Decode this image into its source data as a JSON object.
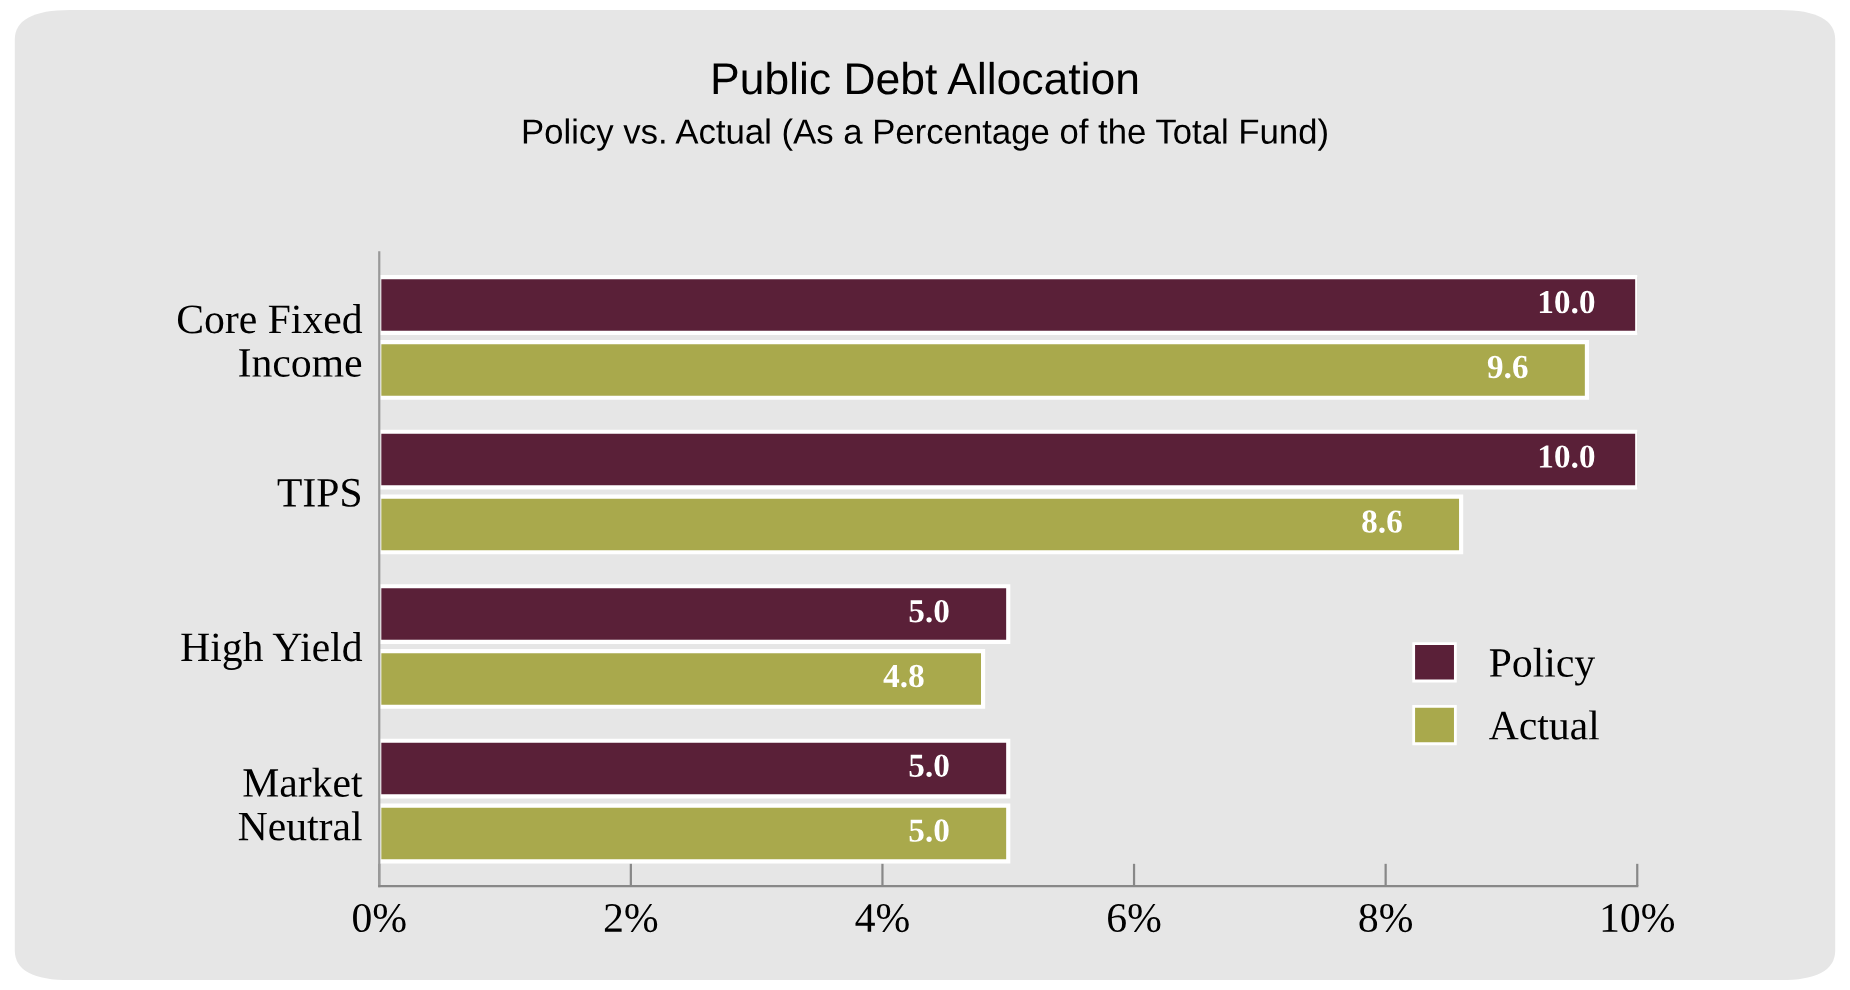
{
  "chart_data": {
    "type": "bar",
    "orientation": "horizontal",
    "title": "Public Debt Allocation",
    "subtitle": "Policy vs. Actual (As a Percentage of the Total Fund)",
    "categories": [
      "Core Fixed\nIncome",
      "TIPS",
      "High Yield",
      "Market\nNeutral"
    ],
    "series": [
      {
        "name": "Policy",
        "color": "#5a2038",
        "values": [
          10.0,
          10.0,
          5.0,
          5.0
        ],
        "value_labels": [
          "10.0",
          "10.0",
          "5.0",
          "5.0"
        ]
      },
      {
        "name": "Actual",
        "color": "#a9a94c",
        "values": [
          9.6,
          8.6,
          4.8,
          5.0
        ],
        "value_labels": [
          "9.6",
          "8.6",
          "4.8",
          "5.0"
        ]
      }
    ],
    "xlim": [
      0,
      10
    ],
    "xticks": [
      {
        "value": 0,
        "label": "0%"
      },
      {
        "value": 2,
        "label": "2%"
      },
      {
        "value": 4,
        "label": "4%"
      },
      {
        "value": 6,
        "label": "6%"
      },
      {
        "value": 8,
        "label": "8%"
      },
      {
        "value": 10,
        "label": "10%"
      }
    ],
    "grid": false,
    "legend": "right"
  }
}
